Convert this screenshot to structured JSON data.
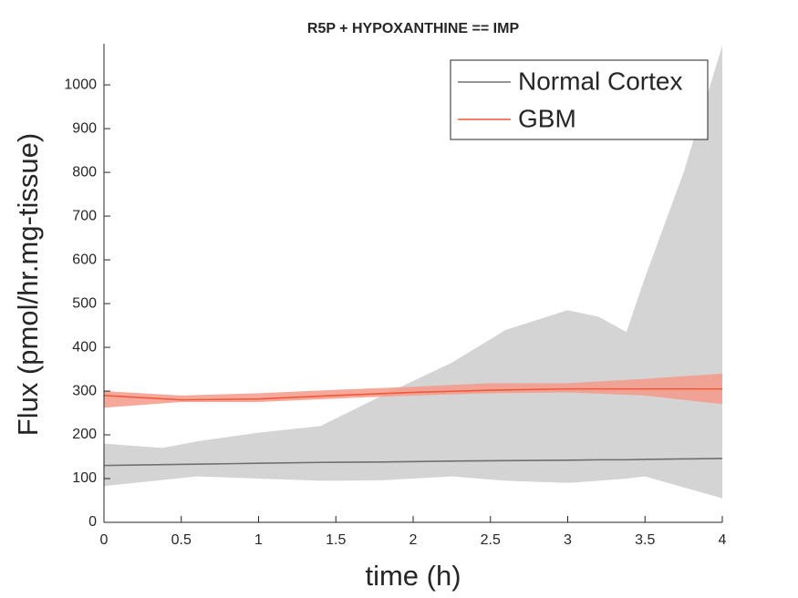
{
  "chart_data": {
    "type": "line",
    "title": "R5P + HYPOXANTHINE == IMP",
    "x_label": "time (h)",
    "y_label": "Flux (pmol/hr.mg-tissue)",
    "xlim": [
      0,
      4
    ],
    "xticks": [
      0,
      0.5,
      1,
      1.5,
      2,
      2.5,
      3,
      3.5,
      4
    ],
    "ylim": [
      0,
      1094
    ],
    "yticks": [
      0,
      100,
      200,
      300,
      400,
      500,
      600,
      700,
      800,
      900,
      1000
    ],
    "legend": "northeast",
    "series": [
      {
        "name": "Normal Cortex",
        "color": "#707070",
        "band_color": "#d4d4d4",
        "x": [
          0,
          0.38,
          0.6,
          1,
          1.4,
          1.8,
          2.25,
          2.6,
          3,
          3.2,
          3.38,
          3.5,
          3.75,
          4
        ],
        "values": [
          130,
          132,
          133,
          135,
          137,
          138,
          140,
          141,
          142,
          143,
          143,
          144,
          145,
          146
        ],
        "lower": [
          83,
          97,
          105,
          100,
          95,
          96,
          105,
          95,
          90,
          95,
          100,
          105,
          80,
          55
        ],
        "upper": [
          180,
          170,
          185,
          205,
          220,
          290,
          365,
          440,
          485,
          470,
          435,
          560,
          800,
          1090
        ]
      },
      {
        "name": "GBM",
        "color": "#f0583a",
        "band_color": "#f49a88",
        "x": [
          0,
          0.5,
          1,
          1.5,
          2,
          2.5,
          3,
          3.5,
          4
        ],
        "values": [
          290,
          280,
          282,
          290,
          297,
          302,
          305,
          305,
          305
        ],
        "lower": [
          262,
          275,
          275,
          283,
          290,
          295,
          297,
          290,
          270
        ],
        "upper": [
          300,
          290,
          295,
          303,
          310,
          318,
          318,
          328,
          340
        ]
      }
    ]
  }
}
